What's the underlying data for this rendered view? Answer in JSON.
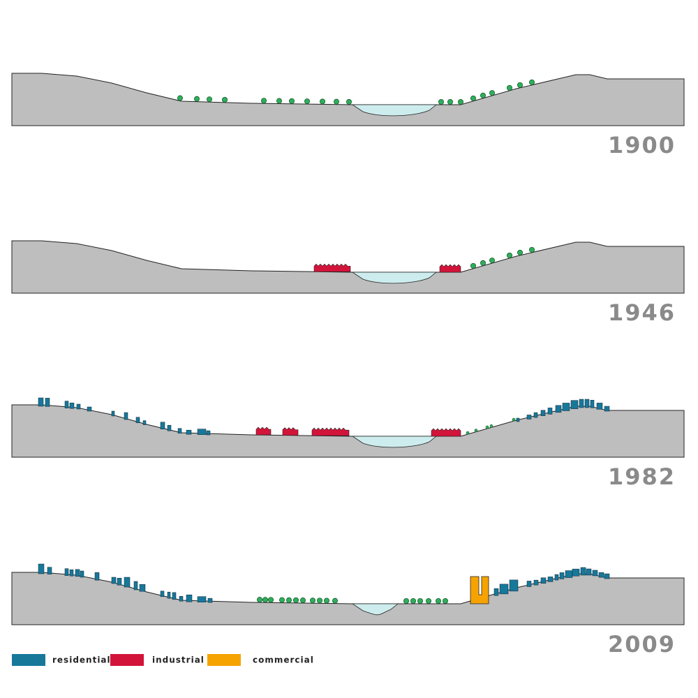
{
  "sections": [
    {
      "year": "1900"
    },
    {
      "year": "1946"
    },
    {
      "year": "1982"
    },
    {
      "year": "2009"
    }
  ],
  "legend": [
    {
      "label": "residential",
      "color": "#17789a"
    },
    {
      "label": "industrial",
      "color": "#d3143a"
    },
    {
      "label": "commercial",
      "color": "#f6a300"
    }
  ]
}
